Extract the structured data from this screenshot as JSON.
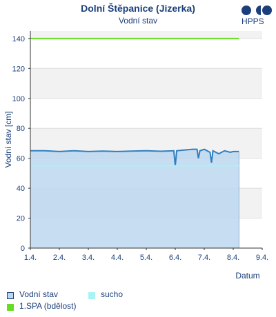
{
  "header": {
    "title": "Dolní Štěpanice (Jizerka)",
    "subtitle": "Vodní stav",
    "logo_text": "HPPS"
  },
  "chart_data": {
    "type": "line",
    "xlabel": "Datum",
    "ylabel": "Vodní stav [cm]",
    "ylim": [
      0,
      145
    ],
    "yticks": [
      0,
      20,
      40,
      60,
      80,
      100,
      120,
      140
    ],
    "xticks": [
      "1.4.",
      "2.4.",
      "3.4.",
      "4.4.",
      "5.4.",
      "6.4.",
      "7.4.",
      "8.4.",
      "9.4."
    ],
    "xlim_days": [
      1,
      9.0
    ],
    "series": [
      {
        "name": "Vodní stav",
        "type": "area",
        "color": "#2e7fc0",
        "fill": "#bdd7ee",
        "x_days": [
          1.0,
          1.5,
          2.0,
          2.5,
          3.0,
          3.5,
          4.0,
          4.5,
          5.0,
          5.5,
          5.95,
          6.0,
          6.05,
          6.3,
          6.6,
          6.75,
          6.8,
          6.85,
          7.0,
          7.2,
          7.25,
          7.3,
          7.5,
          7.7,
          7.9,
          8.0,
          8.2
        ],
        "y": [
          65,
          65,
          64.5,
          65,
          64.5,
          64.8,
          64.5,
          64.8,
          65,
          64.7,
          65,
          55,
          65,
          65.5,
          66,
          66,
          60,
          65,
          66,
          64,
          57,
          65,
          63,
          65,
          64,
          64.5,
          64.5
        ]
      },
      {
        "name": "sucho",
        "type": "line",
        "color": "#a8f4f4",
        "y_constant": 55
      },
      {
        "name": "1.SPA (bdělost)",
        "type": "line",
        "color": "#66dd22",
        "y_constant": 140
      }
    ]
  },
  "legend": [
    {
      "label": "Vodní stav",
      "color": "#bdd7ee",
      "border": "#1a3f7a"
    },
    {
      "label": "sucho",
      "color": "#a8f4f4",
      "border": "#a8f4f4"
    },
    {
      "label": "1.SPA (bdělost)",
      "color": "#66dd22",
      "border": "#66dd22"
    }
  ]
}
